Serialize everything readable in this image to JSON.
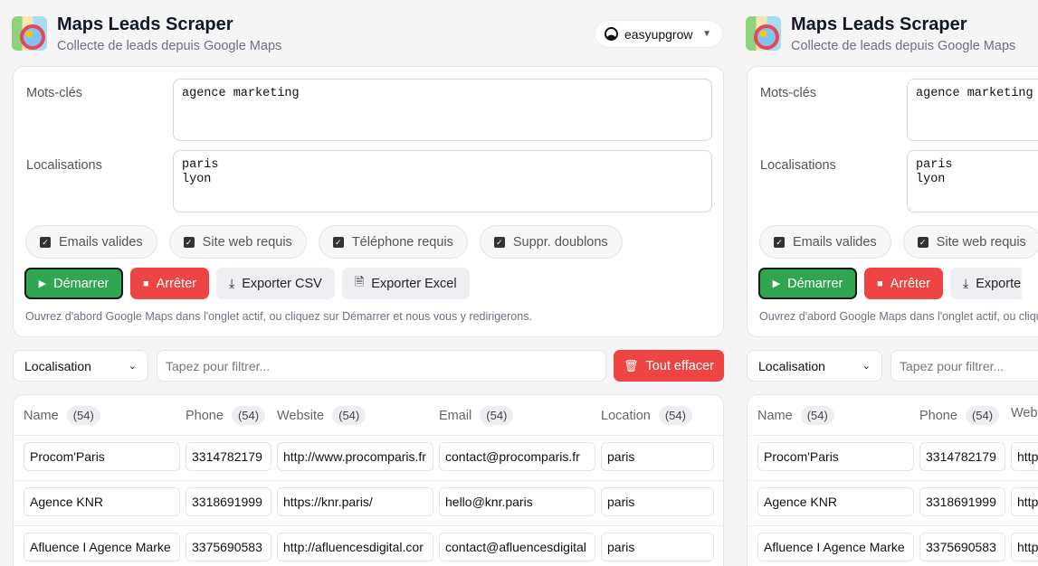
{
  "header": {
    "title": "Maps Leads Scraper",
    "subtitle": "Collecte de leads depuis Google Maps",
    "account": "easyupgrow"
  },
  "form": {
    "keywords_label": "Mots-clés",
    "keywords_value": "agence marketing",
    "locations_label": "Localisations",
    "locations_value": "paris\nlyon",
    "options": [
      {
        "label": "Emails valides",
        "checked": true
      },
      {
        "label": "Site web requis",
        "checked": true
      },
      {
        "label": "Téléphone requis",
        "checked": true
      },
      {
        "label": "Suppr. doublons",
        "checked": true
      }
    ],
    "start": "Démarrer",
    "stop": "Arrêter",
    "export_csv": "Exporter CSV",
    "export_excel": "Exporter Excel",
    "hint": "Ouvrez d'abord Google Maps dans l'onglet actif, ou cliquez sur Démarrer et nous vous y redirigerons."
  },
  "filter": {
    "column": "Localisation",
    "placeholder": "Tapez pour filtrer...",
    "clear": "Tout effacer"
  },
  "colors": {
    "start": "#2fa64f",
    "danger": "#ef4444"
  },
  "table": {
    "columns": [
      {
        "label": "Name",
        "count": "(54)"
      },
      {
        "label": "Phone",
        "count": "(54)"
      },
      {
        "label": "Website",
        "count": "(54)"
      },
      {
        "label": "Email",
        "count": "(54)"
      },
      {
        "label": "Location",
        "count": "(54)"
      }
    ],
    "rows": [
      [
        "Procom'Paris",
        "3314782179",
        "http://www.procomparis.fr",
        "contact@procomparis.fr",
        "paris"
      ],
      [
        "Agence KNR",
        "3318691999",
        "https://knr.paris/",
        "hello@knr.paris",
        "paris"
      ],
      [
        "Afluence I Agence Marke",
        "3375690583",
        "http://afluencesdigital.cor",
        "contact@afluencesdigital",
        "paris"
      ]
    ]
  }
}
